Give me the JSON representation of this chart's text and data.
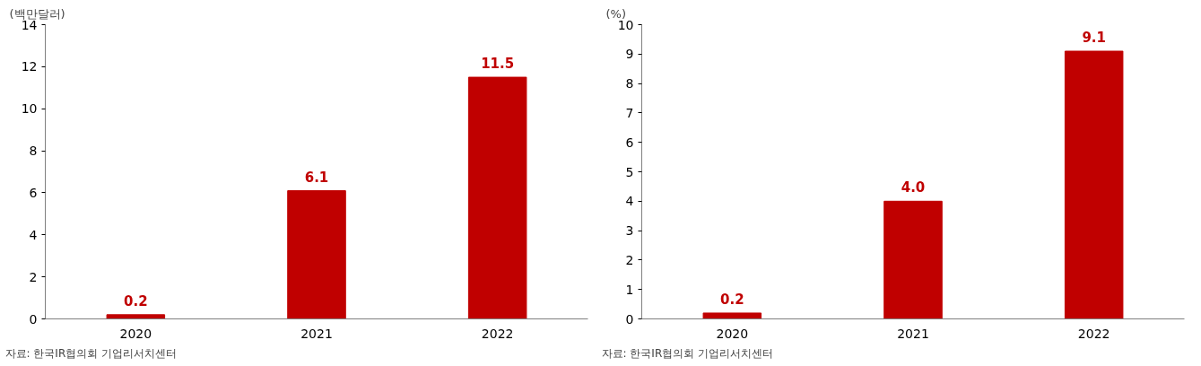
{
  "chart_data": [
    {
      "type": "bar",
      "ylabel": "(백만달러)",
      "categories": [
        "2020",
        "2021",
        "2022"
      ],
      "values": [
        0.2,
        6.1,
        11.5
      ],
      "value_labels": [
        "0.2",
        "6.1",
        "11.5"
      ],
      "color": "#c00000",
      "ylim": [
        0,
        14
      ],
      "yticks": [
        0,
        2,
        4,
        6,
        8,
        10,
        12,
        14
      ],
      "grid": false,
      "annotations": [
        "자료: 한국IR협의회 기업리서치센터"
      ]
    },
    {
      "type": "bar",
      "ylabel": "(%)",
      "categories": [
        "2020",
        "2021",
        "2022"
      ],
      "values": [
        0.2,
        4.0,
        9.1
      ],
      "value_labels": [
        "0.2",
        "4.0",
        "9.1"
      ],
      "color": "#c00000",
      "ylim": [
        0,
        10
      ],
      "yticks": [
        0,
        1,
        2,
        3,
        4,
        5,
        6,
        7,
        8,
        9,
        10
      ],
      "grid": false,
      "annotations": [
        "자료: 한국IR협의회 기업리서치센터"
      ]
    }
  ]
}
